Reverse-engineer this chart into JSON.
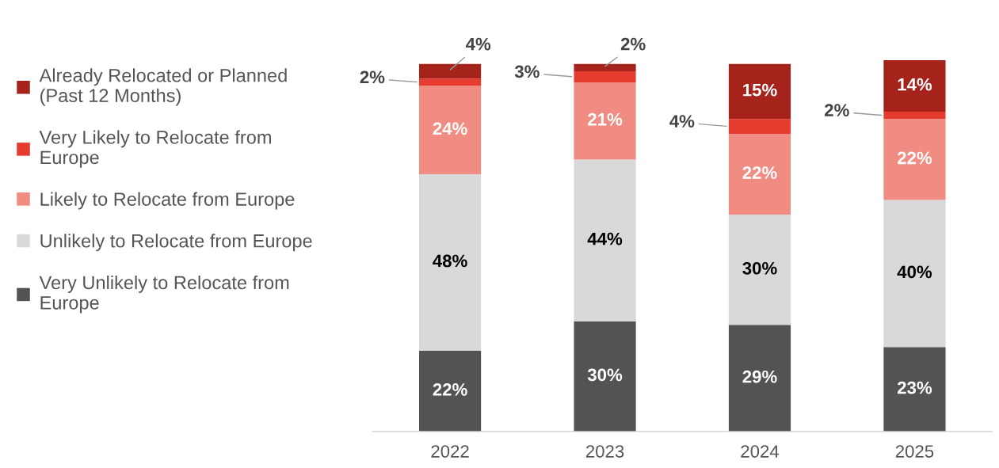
{
  "chart_data": {
    "type": "bar",
    "stacked": true,
    "categories": [
      "2022",
      "2023",
      "2024",
      "2025"
    ],
    "series": [
      {
        "name": "Very Unlikely to Relocate from\nEurope",
        "color": "#535355",
        "values": [
          22,
          30,
          29,
          23
        ],
        "value_labels": [
          "22%",
          "30%",
          "29%",
          "23%"
        ]
      },
      {
        "name": "Unlikely to Relocate from Europe",
        "color": "#d9d9db",
        "values": [
          48,
          44,
          30,
          40
        ],
        "value_labels": [
          "48%",
          "44%",
          "30%",
          "40%"
        ]
      },
      {
        "name": "Likely to Relocate from Europe",
        "color": "#f08c82",
        "values": [
          24,
          21,
          22,
          22
        ],
        "value_labels": [
          "24%",
          "21%",
          "22%",
          "22%"
        ]
      },
      {
        "name": "Very Likely to Relocate from\nEurope",
        "color": "#e63c2f",
        "values": [
          2,
          3,
          4,
          2
        ],
        "value_labels": [
          "2%",
          "3%",
          "4%",
          "2%"
        ]
      },
      {
        "name": "Already Relocated or Planned\n(Past 12 Months)",
        "color": "#a6231c",
        "values": [
          4,
          2,
          15,
          14
        ],
        "value_labels": [
          "4%",
          "2%",
          "15%",
          "14%"
        ]
      }
    ],
    "legend": "left",
    "grid": false
  }
}
